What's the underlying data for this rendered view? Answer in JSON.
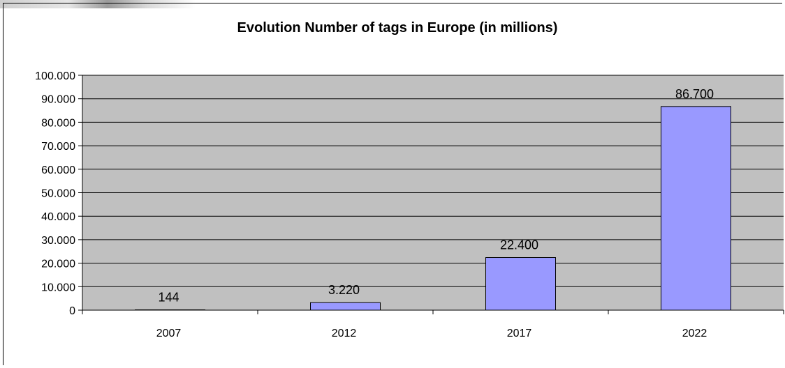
{
  "chart_data": {
    "type": "bar",
    "title": "Evolution Number of tags in Europe (in millions)",
    "xlabel": "",
    "ylabel": "",
    "categories": [
      "2007",
      "2012",
      "2017",
      "2022"
    ],
    "values": [
      144,
      3220,
      22400,
      86700
    ],
    "value_labels": [
      "144",
      "3.220",
      "22.400",
      "86.700"
    ],
    "ylim": [
      0,
      100000
    ],
    "yticks": [
      0,
      10000,
      20000,
      30000,
      40000,
      50000,
      60000,
      70000,
      80000,
      90000,
      100000
    ],
    "ytick_labels": [
      "0",
      "10.000",
      "20.000",
      "30.000",
      "40.000",
      "50.000",
      "60.000",
      "70.000",
      "80.000",
      "90.000",
      "100.000"
    ],
    "grid": true,
    "legend": "none",
    "colors": {
      "plot_background": "#c0c0c0",
      "bar_fill": "#9999ff",
      "bar_stroke": "#000000",
      "gridline": "#000000"
    }
  }
}
